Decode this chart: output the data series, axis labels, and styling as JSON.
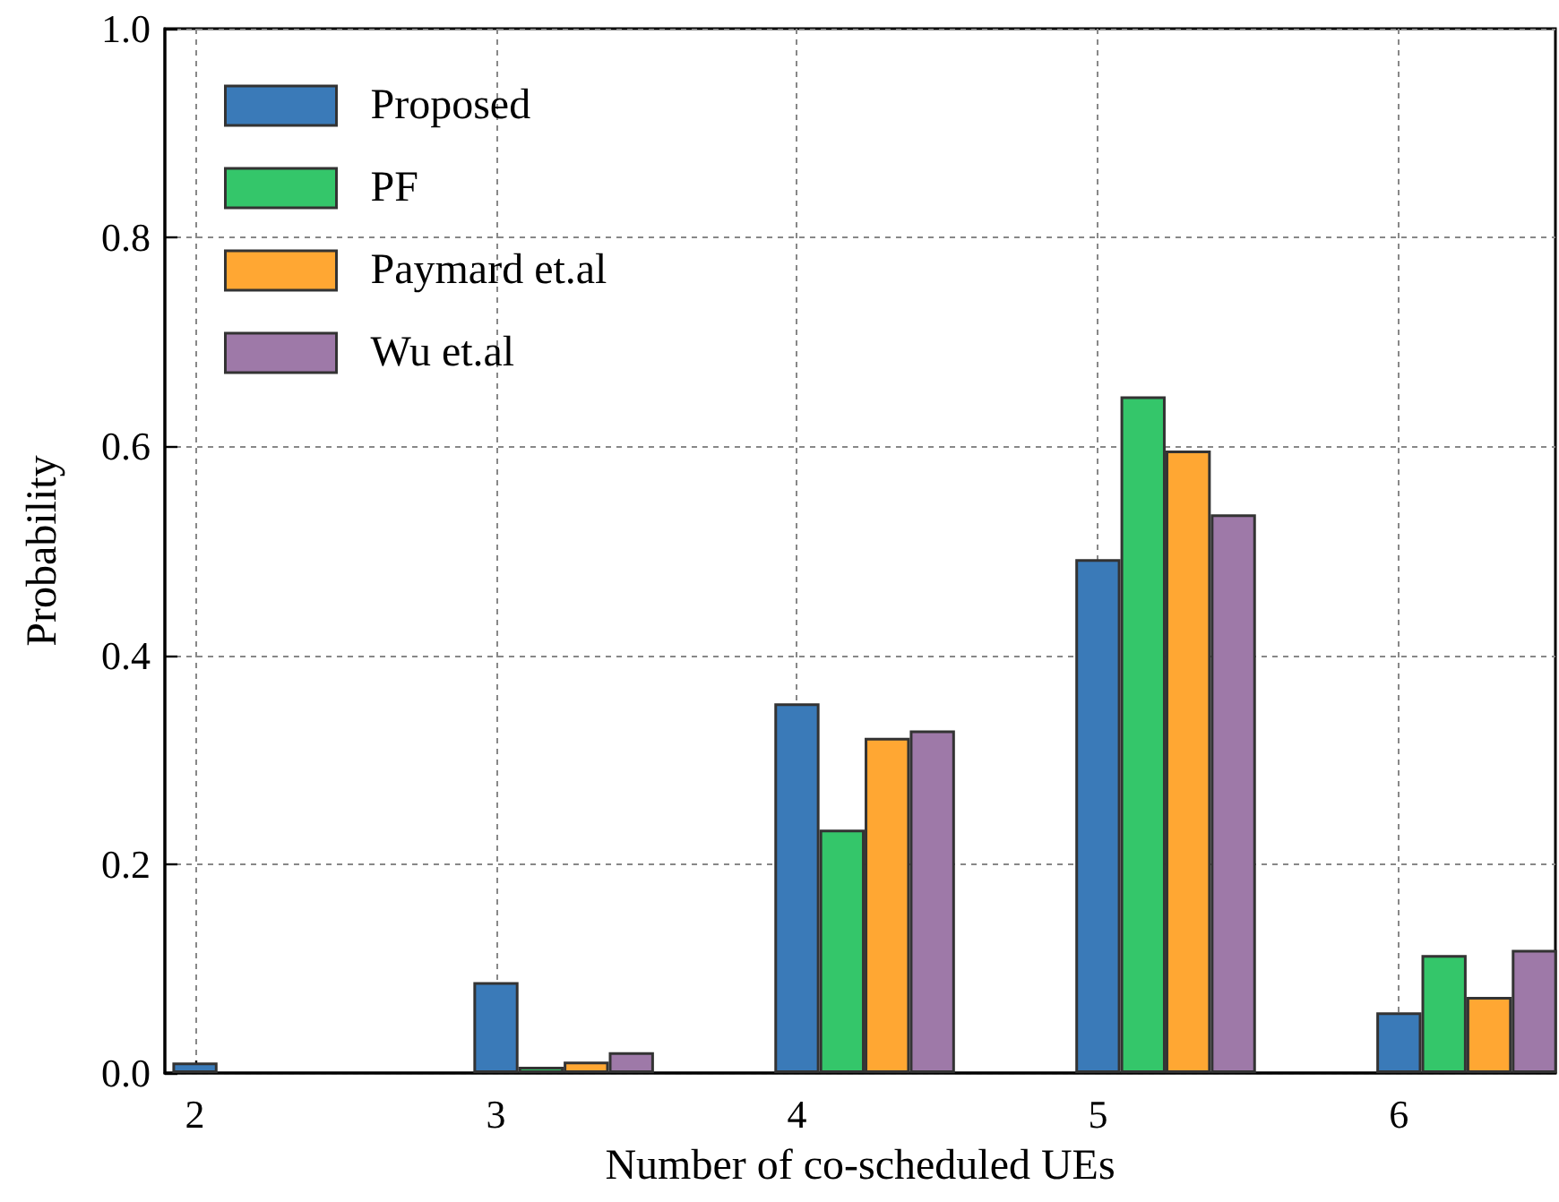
{
  "chart_data": {
    "type": "bar",
    "xlabel": "Number of co-scheduled UEs",
    "ylabel": "Probability",
    "xlim": [
      1.9,
      6.52
    ],
    "xticks": [
      2,
      3,
      4,
      5,
      6
    ],
    "ylim": [
      0,
      1
    ],
    "yticks": [
      {
        "value": 0,
        "label": "0.0"
      },
      {
        "value": 0.2,
        "label": "0.2"
      },
      {
        "value": 0.4,
        "label": "0.4"
      },
      {
        "value": 0.6,
        "label": "0.6"
      },
      {
        "value": 0.8,
        "label": "0.8"
      },
      {
        "value": 1,
        "label": "1.0"
      }
    ],
    "grid": true,
    "legend": "top left",
    "series": [
      {
        "name": "Proposed",
        "color": "#3a7ab8",
        "x": [
          2,
          3,
          4,
          5,
          6
        ],
        "values": [
          0.01,
          0.087,
          0.354,
          0.492,
          0.058
        ]
      },
      {
        "name": "PF",
        "color": "#34c66a",
        "x": [
          3.15,
          4.15,
          5.15,
          6.15
        ],
        "values": [
          0.006,
          0.233,
          0.648,
          0.113
        ]
      },
      {
        "name": "Paymard et.al",
        "color": "#ffa733",
        "x": [
          3.3,
          4.3,
          5.3,
          6.3
        ],
        "values": [
          0.011,
          0.321,
          0.596,
          0.073
        ]
      },
      {
        "name": "Wu et.al",
        "color": "#9e79a8",
        "x": [
          3.45,
          4.45,
          5.45,
          6.45
        ],
        "values": [
          0.02,
          0.328,
          0.535,
          0.118
        ]
      }
    ]
  }
}
